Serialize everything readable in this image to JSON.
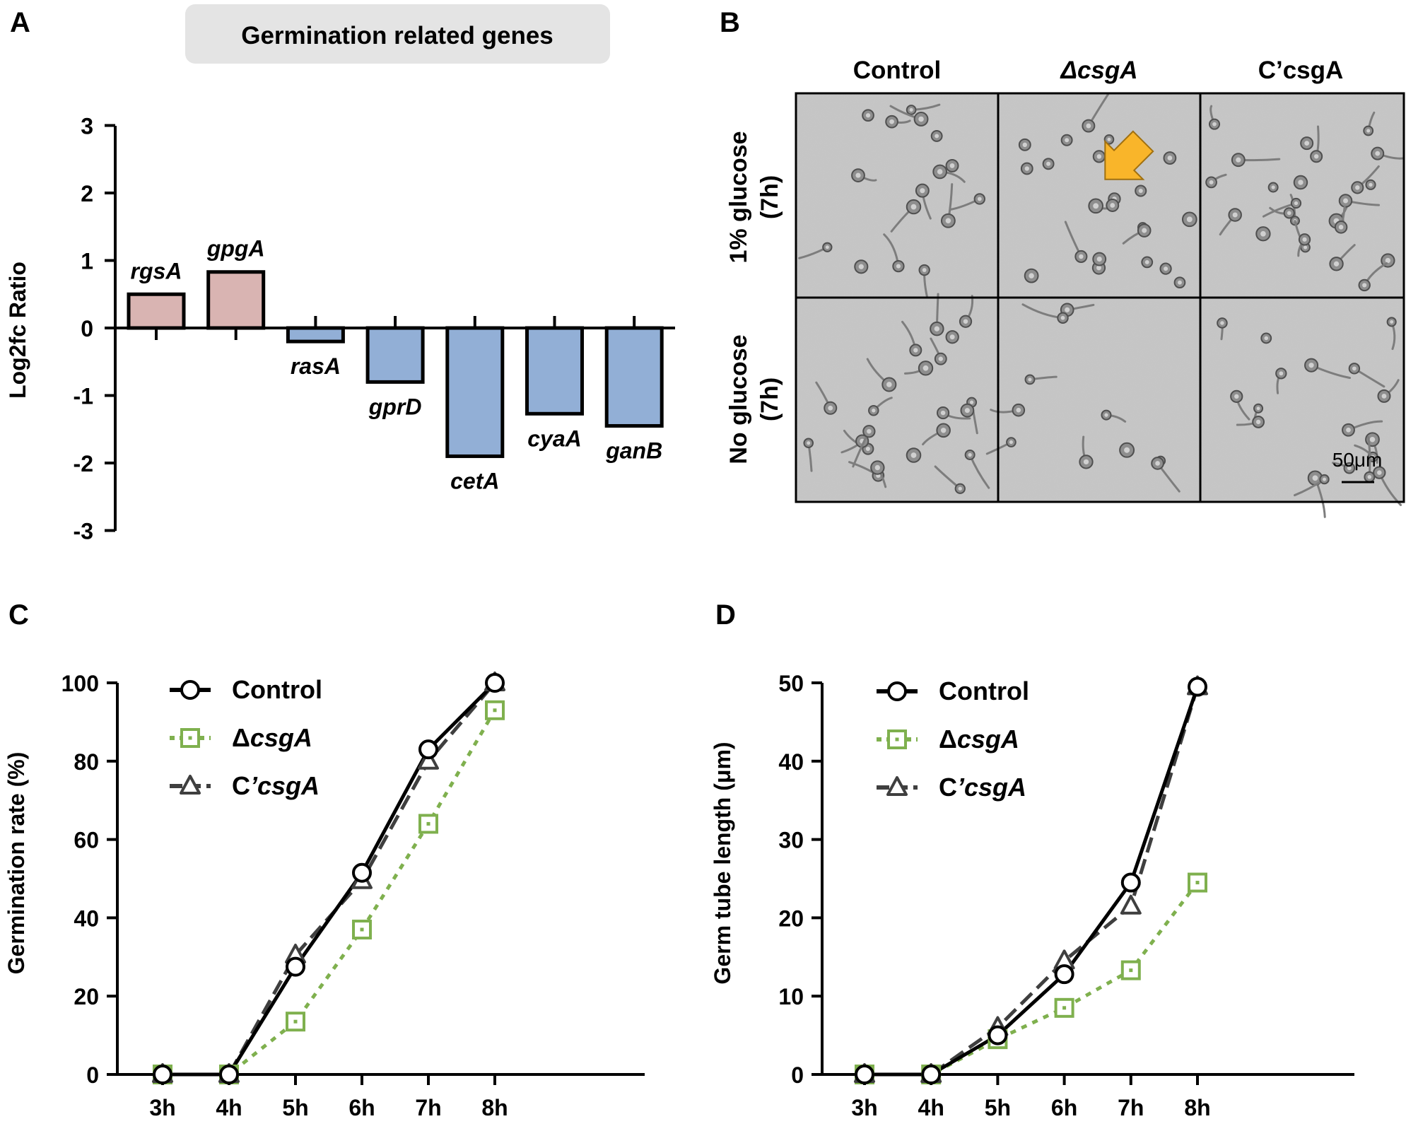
{
  "panels": {
    "A": {
      "letter": "A"
    },
    "B": {
      "letter": "B"
    },
    "C": {
      "letter": "C"
    },
    "D": {
      "letter": "D"
    }
  },
  "colors": {
    "up": "#d9b4b2",
    "down": "#92afd6",
    "control": "#000000",
    "csga": "#7fb04e",
    "comp": "#3f3f3f",
    "banner": "#e4e4e4",
    "arrow": "#f9b52a"
  },
  "micro": {
    "columns": [
      "Control",
      "ΔcsgA",
      "C’csgA"
    ],
    "rows": [
      "1% glucose\n(7h)",
      "No glucose\n(7h)"
    ],
    "row1": [
      "1% glucose",
      "(7h)"
    ],
    "row2": [
      "No glucose",
      "(7h)"
    ],
    "scale_bar": "50μm"
  },
  "chart_data": [
    {
      "type": "bar",
      "title": "Germination related genes",
      "ylabel": "Log2fc Ratio",
      "xlabel": "",
      "ylim": [
        -3,
        3
      ],
      "yticks": [
        3,
        2,
        1,
        0,
        -1,
        -2,
        -3
      ],
      "ytick_labels": [
        "3",
        "2",
        "1",
        "0",
        "-1",
        "-2",
        "-3"
      ],
      "categories": [
        "rgsA",
        "gpgA",
        "rasA",
        "gprD",
        "cetA",
        "cyaA",
        "ganB"
      ],
      "values": [
        0.5,
        0.83,
        -0.2,
        -0.8,
        -1.9,
        -1.27,
        -1.45
      ],
      "colors": [
        "#d9b4b2",
        "#d9b4b2",
        "#92afd6",
        "#92afd6",
        "#92afd6",
        "#92afd6",
        "#92afd6"
      ]
    },
    {
      "type": "line",
      "ylabel": "Germination rate (%)",
      "xlabel": "",
      "ylim": [
        0,
        100
      ],
      "yticks": [
        0,
        20,
        40,
        60,
        80,
        100
      ],
      "ytick_labels": [
        "0",
        "20",
        "40",
        "60",
        "80",
        "100"
      ],
      "categories": [
        "3h",
        "4h",
        "5h",
        "6h",
        "7h",
        "8h"
      ],
      "series": [
        {
          "name": "Control",
          "marker": "circle",
          "values": [
            0,
            0,
            27.5,
            51.5,
            83,
            100
          ]
        },
        {
          "name": "ΔcsgA",
          "marker": "square",
          "values": [
            0,
            0,
            13.5,
            37,
            64,
            93
          ]
        },
        {
          "name": "C’csgA",
          "marker": "triangle",
          "values": [
            0,
            0,
            30.5,
            49.5,
            80,
            100
          ]
        }
      ]
    },
    {
      "type": "line",
      "ylabel": "Germ tube length (μm)",
      "xlabel": "",
      "ylim": [
        0,
        50
      ],
      "yticks": [
        0,
        10,
        20,
        30,
        40,
        50
      ],
      "ytick_labels": [
        "0",
        "10",
        "20",
        "30",
        "40",
        "50"
      ],
      "categories": [
        "3h",
        "4h",
        "5h",
        "6h",
        "7h",
        "8h"
      ],
      "series": [
        {
          "name": "Control",
          "marker": "circle",
          "values": [
            0,
            0,
            5,
            12.8,
            24.5,
            49.5
          ]
        },
        {
          "name": "ΔcsgA",
          "marker": "square",
          "values": [
            0,
            0,
            4.5,
            8.5,
            13.3,
            24.5
          ]
        },
        {
          "name": "C’csgA",
          "marker": "triangle",
          "values": [
            0,
            0,
            6,
            14.5,
            21.5,
            49.5
          ]
        }
      ]
    }
  ]
}
